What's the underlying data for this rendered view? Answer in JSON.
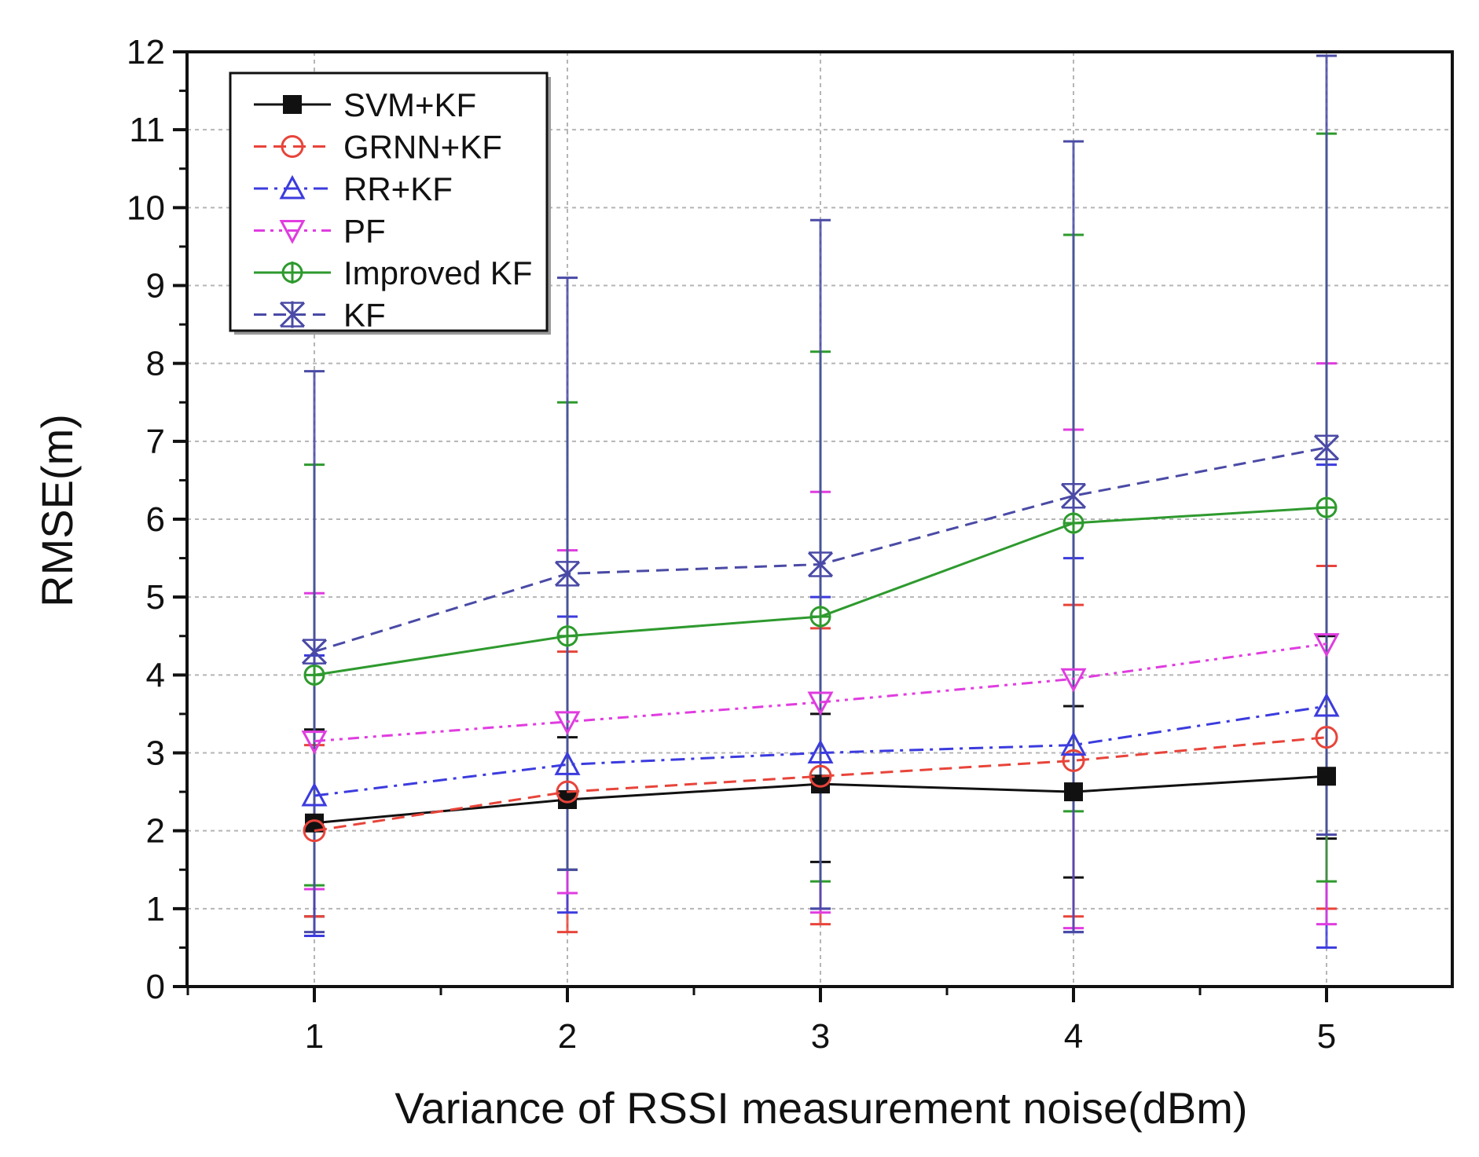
{
  "chart_data": {
    "type": "line",
    "title": "",
    "xlabel": "Variance of RSSI measurement noise(dBm)",
    "ylabel": "RMSE(m)",
    "x": [
      1,
      2,
      3,
      4,
      5
    ],
    "xlim": [
      0.5,
      5.5
    ],
    "ylim": [
      0,
      12
    ],
    "xticks": [
      1,
      2,
      3,
      4,
      5
    ],
    "yticks": [
      0,
      1,
      2,
      3,
      4,
      5,
      6,
      7,
      8,
      9,
      10,
      11,
      12
    ],
    "grid": true,
    "legend_position": "top-left",
    "series": [
      {
        "name": "SVM+KF",
        "color": "#111111",
        "marker": "filled-square",
        "line": "solid",
        "values": [
          2.1,
          2.4,
          2.6,
          2.5,
          2.7
        ],
        "err_low": [
          1.2,
          0.9,
          1.0,
          1.1,
          0.8
        ],
        "err_high": [
          1.2,
          0.8,
          0.9,
          1.1,
          1.8
        ]
      },
      {
        "name": "GRNN+KF",
        "color": "#e8443a",
        "marker": "open-circle",
        "line": "dashed",
        "values": [
          2.0,
          2.5,
          2.7,
          2.9,
          3.2
        ],
        "err_low": [
          1.1,
          1.8,
          1.9,
          2.0,
          2.2
        ],
        "err_high": [
          1.1,
          1.8,
          1.9,
          2.0,
          2.2
        ]
      },
      {
        "name": "RR+KF",
        "color": "#3b3bdf",
        "marker": "open-triangle-up",
        "line": "dashdot",
        "values": [
          2.45,
          2.85,
          3.0,
          3.1,
          3.6
        ],
        "err_low": [
          1.8,
          1.9,
          2.0,
          2.4,
          3.1
        ],
        "err_high": [
          1.8,
          1.9,
          2.0,
          2.4,
          3.1
        ]
      },
      {
        "name": "PF",
        "color": "#e03ce0",
        "marker": "open-triangle-down",
        "line": "dashdotdot",
        "values": [
          3.15,
          3.4,
          3.65,
          3.95,
          4.4
        ],
        "err_low": [
          1.9,
          2.2,
          2.7,
          3.2,
          3.6
        ],
        "err_high": [
          1.9,
          2.2,
          2.7,
          3.2,
          3.6
        ]
      },
      {
        "name": "Improved KF",
        "color": "#2e9a2e",
        "marker": "open-diamond-plus",
        "line": "solid",
        "values": [
          4.0,
          4.5,
          4.75,
          5.95,
          6.15
        ],
        "err_low": [
          2.7,
          3.0,
          3.4,
          3.7,
          4.8
        ],
        "err_high": [
          2.7,
          3.0,
          3.4,
          3.7,
          4.8
        ]
      },
      {
        "name": "KF",
        "color": "#4a4aa6",
        "marker": "star-x",
        "line": "dashed",
        "values": [
          4.3,
          5.3,
          5.42,
          6.3,
          6.92
        ],
        "err_low": [
          3.6,
          3.8,
          4.42,
          5.6,
          4.97
        ],
        "err_high": [
          3.6,
          3.8,
          4.42,
          4.55,
          5.03
        ]
      }
    ]
  }
}
